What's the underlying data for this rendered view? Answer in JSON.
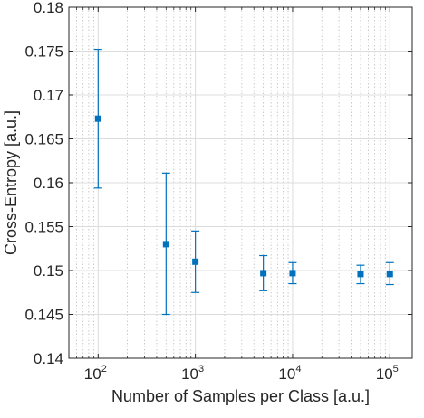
{
  "chart_data": {
    "type": "scatter",
    "title": "",
    "xlabel": "Number of Samples per Class [a.u.]",
    "ylabel": "Cross-Entropy [a.u.]",
    "x_scale": "log",
    "xlim": [
      50,
      170000
    ],
    "ylim": [
      0.14,
      0.18
    ],
    "grid": true,
    "minor_grid": true,
    "legend": "none",
    "marker_color": "#0072BD",
    "x_ticks": [
      {
        "base": "10",
        "exp": "2",
        "value": 100
      },
      {
        "base": "10",
        "exp": "3",
        "value": 1000
      },
      {
        "base": "10",
        "exp": "4",
        "value": 10000
      },
      {
        "base": "10",
        "exp": "5",
        "value": 100000
      }
    ],
    "y_ticks": [
      0.14,
      0.145,
      0.15,
      0.155,
      0.16,
      0.165,
      0.17,
      0.175,
      0.18
    ],
    "y_tick_labels": [
      "0.14",
      "0.145",
      "0.15",
      "0.155",
      "0.16",
      "0.165",
      "0.17",
      "0.175",
      "0.18"
    ],
    "points": [
      {
        "x": 100,
        "y": 0.1673,
        "lower": 0.1594,
        "upper": 0.1752
      },
      {
        "x": 500,
        "y": 0.153,
        "lower": 0.145,
        "upper": 0.1611
      },
      {
        "x": 1000,
        "y": 0.151,
        "lower": 0.1475,
        "upper": 0.1545
      },
      {
        "x": 5000,
        "y": 0.1497,
        "lower": 0.1477,
        "upper": 0.1517
      },
      {
        "x": 10000,
        "y": 0.1497,
        "lower": 0.1485,
        "upper": 0.1509
      },
      {
        "x": 50000,
        "y": 0.1496,
        "lower": 0.1485,
        "upper": 0.1506
      },
      {
        "x": 100000,
        "y": 0.1496,
        "lower": 0.1484,
        "upper": 0.1509
      }
    ]
  }
}
